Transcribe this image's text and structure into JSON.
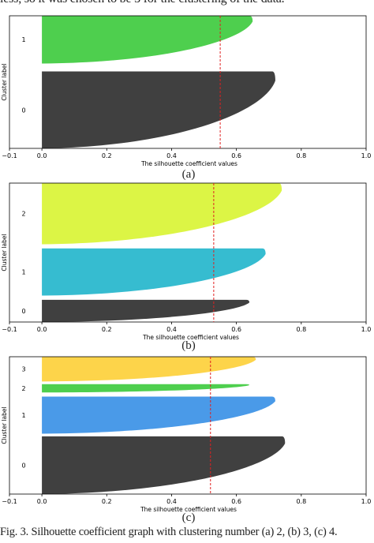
{
  "top_text": "less, so it was chosen to be 3 for the clustering of the data.",
  "caption": "Fig. 3.   Silhouette coefficient graph with clustering number (a) 2, (b) 3, (c) 4.",
  "chart_data": [
    {
      "type": "area",
      "panel_label": "(a)",
      "xlabel": "The silhouette coefficient values",
      "ylabel": "Cluster label",
      "xlim": [
        -0.1,
        1.0
      ],
      "xticks": [
        "−0.1",
        "0.0",
        "0.2",
        "0.4",
        "0.6",
        "0.8",
        "1.0"
      ],
      "average_silhouette": 0.55,
      "clusters": [
        {
          "label": "0",
          "max": 0.72,
          "min": 0.0,
          "color": "#404040"
        },
        {
          "label": "1",
          "max": 0.65,
          "min": 0.0,
          "color": "#4ecf4e"
        }
      ]
    },
    {
      "type": "area",
      "panel_label": "(b)",
      "xlabel": "The silhouette coefficient values",
      "ylabel": "Cluster label",
      "xlim": [
        -0.1,
        1.0
      ],
      "xticks": [
        "−0.1",
        "0.0",
        "0.2",
        "0.4",
        "0.6",
        "0.8",
        "1.0"
      ],
      "average_silhouette": 0.53,
      "clusters": [
        {
          "label": "0",
          "max": 0.64,
          "min": 0.0,
          "color": "#404040"
        },
        {
          "label": "1",
          "max": 0.69,
          "min": 0.0,
          "color": "#36bcd0"
        },
        {
          "label": "2",
          "max": 0.74,
          "min": 0.0,
          "color": "#dcf545"
        }
      ]
    },
    {
      "type": "area",
      "panel_label": "(c)",
      "xlabel": "The silhouette coefficient values",
      "ylabel": "Cluster label",
      "xlim": [
        -0.1,
        1.0
      ],
      "xticks": [
        "−0.1",
        "0.0",
        "0.2",
        "0.4",
        "0.6",
        "0.8",
        "1.0"
      ],
      "average_silhouette": 0.52,
      "clusters": [
        {
          "label": "0",
          "max": 0.75,
          "min": 0.0,
          "color": "#404040"
        },
        {
          "label": "1",
          "max": 0.72,
          "min": 0.0,
          "color": "#4a9ae8"
        },
        {
          "label": "2",
          "max": 0.64,
          "min": 0.0,
          "color": "#4ecf4e"
        },
        {
          "label": "3",
          "max": 0.66,
          "min": 0.0,
          "color": "#fdd44a"
        }
      ]
    }
  ]
}
